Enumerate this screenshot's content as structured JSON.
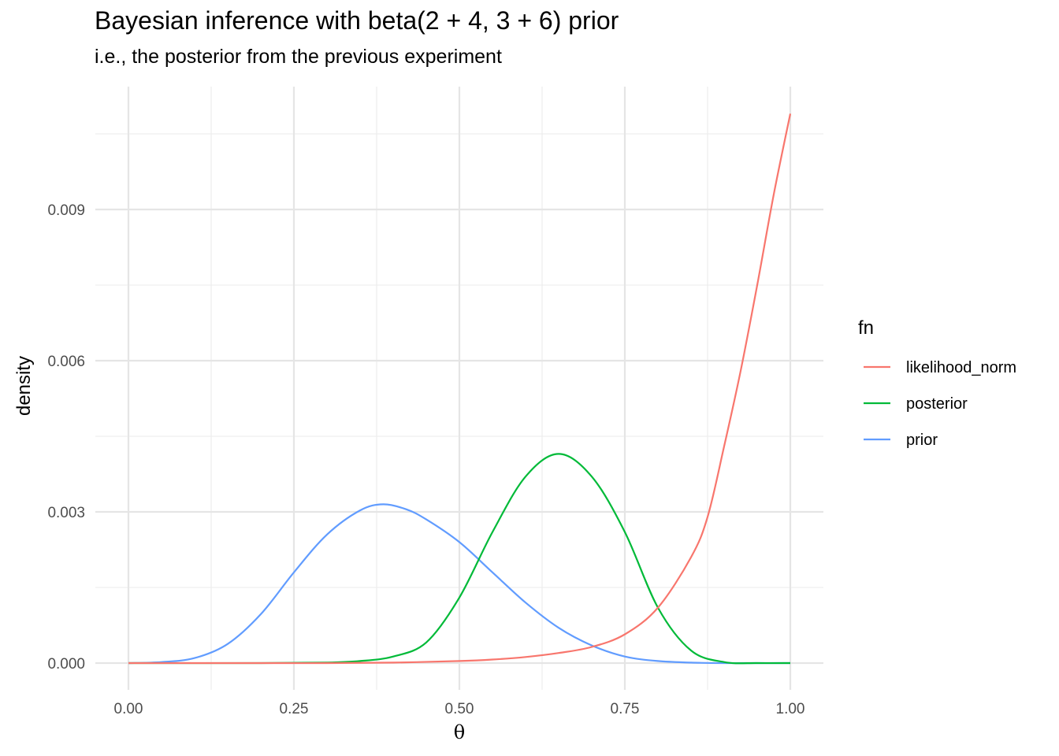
{
  "chart_data": {
    "type": "line",
    "title": "Bayesian inference with beta(2 + 4, 3 + 6) prior",
    "subtitle": "i.e., the posterior from the previous experiment",
    "xlabel": "θ",
    "ylabel": "density",
    "xlim": [
      0,
      1
    ],
    "ylim": [
      0,
      0.0112
    ],
    "x_ticks": [
      "0.00",
      "0.25",
      "0.50",
      "0.75",
      "1.00"
    ],
    "y_ticks": [
      "0.000",
      "0.003",
      "0.006",
      "0.009"
    ],
    "grid": true,
    "legend": {
      "title": "fn",
      "position": "right"
    },
    "series": [
      {
        "name": "likelihood_norm",
        "color": "#F8766D",
        "x": [
          0.0,
          0.1,
          0.2,
          0.3,
          0.4,
          0.5,
          0.55,
          0.6,
          0.65,
          0.7,
          0.75,
          0.8,
          0.85,
          0.875,
          0.9,
          0.925,
          0.95,
          0.975,
          1.0
        ],
        "y": [
          0.0,
          0.0,
          0.0,
          0.0,
          1e-05,
          4e-05,
          7e-05,
          0.00012,
          0.0002,
          0.00032,
          0.00057,
          0.0011,
          0.0021,
          0.0029,
          0.0043,
          0.0058,
          0.0075,
          0.0093,
          0.0109
        ]
      },
      {
        "name": "posterior",
        "color": "#00BA38",
        "x": [
          0.0,
          0.2,
          0.3,
          0.35,
          0.4,
          0.45,
          0.5,
          0.55,
          0.6,
          0.65,
          0.7,
          0.75,
          0.8,
          0.85,
          0.9,
          0.95,
          1.0
        ],
        "y": [
          0.0,
          0.0,
          1e-05,
          4e-05,
          0.00013,
          0.00041,
          0.0013,
          0.0026,
          0.0037,
          0.00415,
          0.0037,
          0.0026,
          0.0011,
          0.00025,
          2e-05,
          0.0,
          0.0
        ]
      },
      {
        "name": "prior",
        "color": "#619CFF",
        "x": [
          0.0,
          0.05,
          0.1,
          0.15,
          0.2,
          0.25,
          0.3,
          0.35,
          0.385,
          0.42,
          0.45,
          0.5,
          0.55,
          0.6,
          0.65,
          0.7,
          0.75,
          0.8,
          0.85,
          0.9,
          0.95,
          1.0
        ],
        "y": [
          0.0,
          2e-05,
          0.0001,
          0.00038,
          0.00097,
          0.0018,
          0.00255,
          0.00303,
          0.00315,
          0.00305,
          0.00285,
          0.0024,
          0.0018,
          0.0012,
          0.0007,
          0.00035,
          0.00013,
          4e-05,
          1e-05,
          0.0,
          0.0,
          0.0
        ]
      }
    ]
  }
}
